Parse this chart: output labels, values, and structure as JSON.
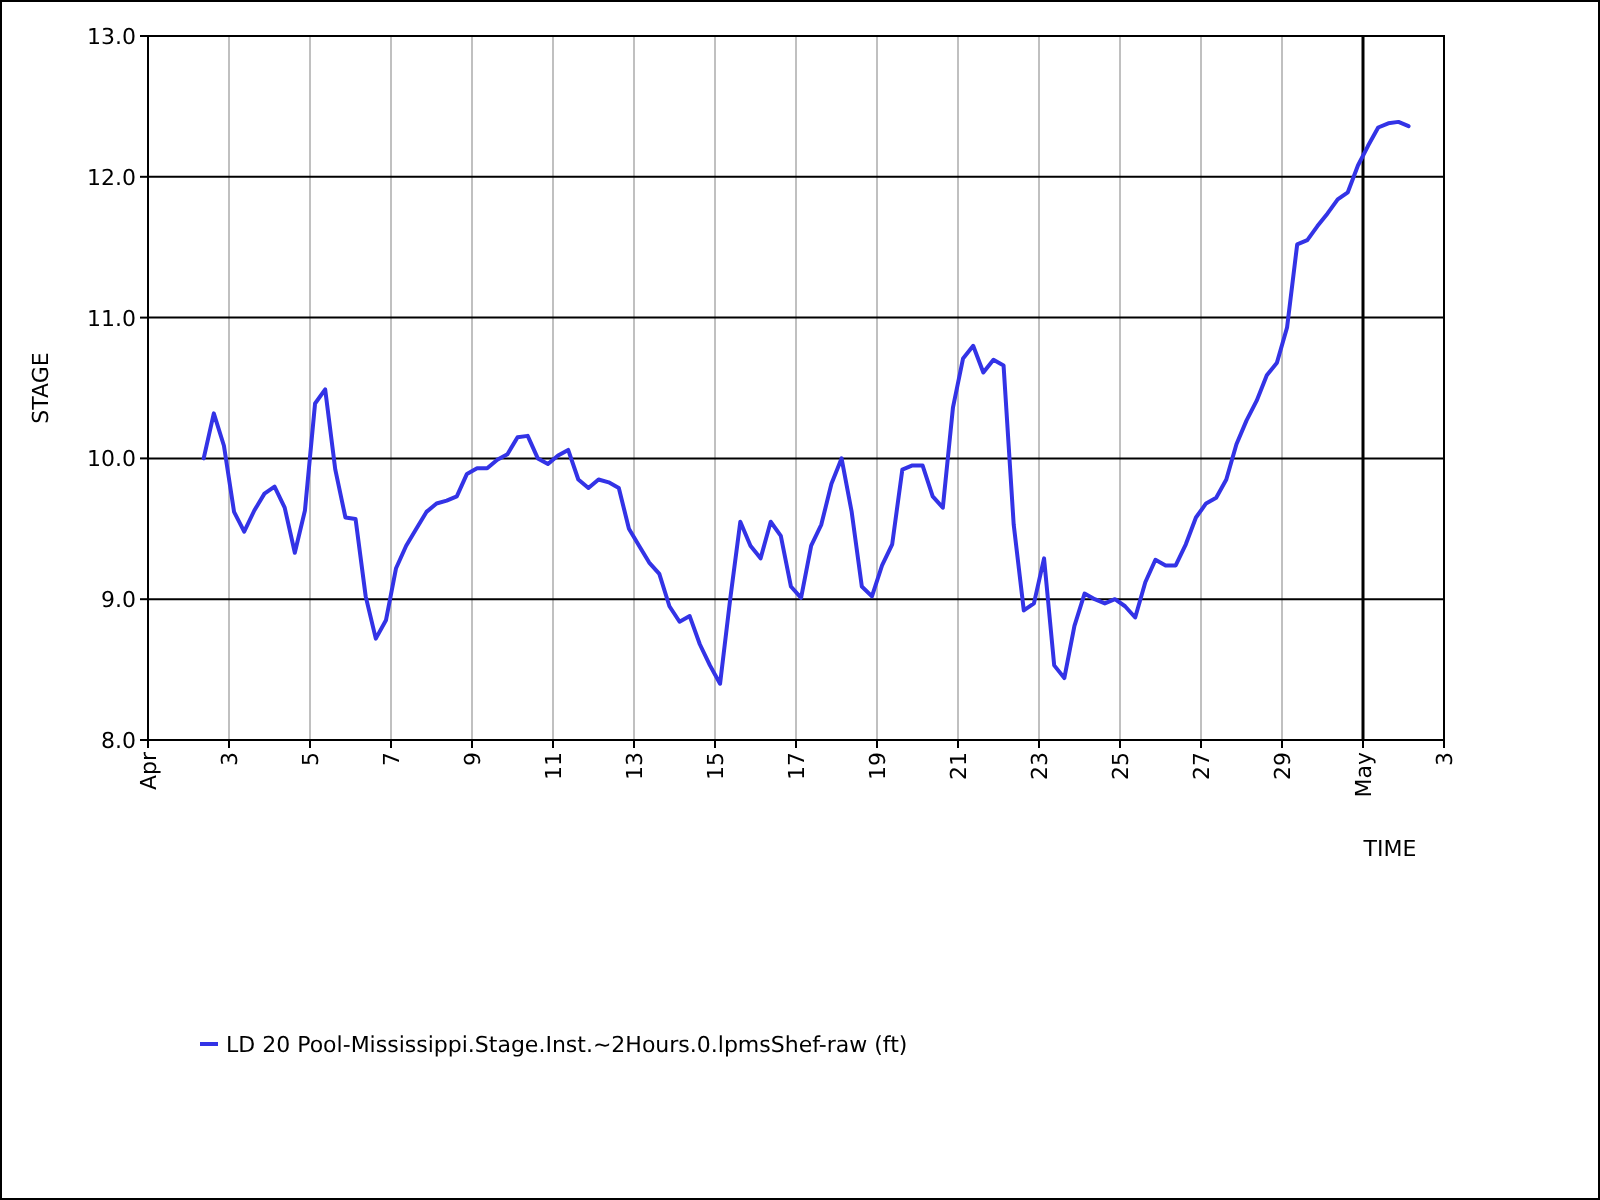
{
  "chart_data": {
    "type": "line",
    "xlabel": "TIME",
    "ylabel": "STAGE",
    "xlim": [
      "--04-01",
      "--05-03"
    ],
    "ylim": [
      8,
      13
    ],
    "xticks": [
      {
        "value": "--04-01",
        "label": "Apr"
      },
      {
        "value": "--04-03",
        "label": "3"
      },
      {
        "value": "--04-05",
        "label": "5"
      },
      {
        "value": "--04-07",
        "label": "7"
      },
      {
        "value": "--04-09",
        "label": "9"
      },
      {
        "value": "--04-11",
        "label": "11"
      },
      {
        "value": "--04-13",
        "label": "13"
      },
      {
        "value": "--04-15",
        "label": "15"
      },
      {
        "value": "--04-17",
        "label": "17"
      },
      {
        "value": "--04-19",
        "label": "19"
      },
      {
        "value": "--04-21",
        "label": "21"
      },
      {
        "value": "--04-23",
        "label": "23"
      },
      {
        "value": "--04-25",
        "label": "25"
      },
      {
        "value": "--04-27",
        "label": "27"
      },
      {
        "value": "--04-29",
        "label": "29"
      },
      {
        "value": "--05-01",
        "label": "May"
      },
      {
        "value": "--05-03",
        "label": "3"
      }
    ],
    "yticks": [
      {
        "value": 8,
        "label": "8.0"
      },
      {
        "value": 9,
        "label": "9.0"
      },
      {
        "value": 10,
        "label": "10.0"
      },
      {
        "value": 11,
        "label": "11.0"
      },
      {
        "value": 12,
        "label": "12.0"
      },
      {
        "value": 13,
        "label": "13.0"
      }
    ],
    "grid": true,
    "legend": "bottom left",
    "marker": "none",
    "line_style": "solid",
    "ref_lines": [
      {
        "axis": "x",
        "value": "--05-01",
        "label": null,
        "color": "#000000"
      }
    ],
    "series": [
      {
        "name": "LD 20 Pool-Mississippi.Stage.Inst.~2Hours.0.lpmsShef-raw (ft)",
        "color": "#3333e6",
        "x": [
          "--04-02T09:00",
          "--04-02T15:00",
          "--04-02T21:00",
          "--04-03T03:00",
          "--04-03T09:00",
          "--04-03T15:00",
          "--04-03T21:00",
          "--04-04T03:00",
          "--04-04T09:00",
          "--04-04T15:00",
          "--04-04T21:00",
          "--04-05T03:00",
          "--04-05T09:00",
          "--04-05T15:00",
          "--04-05T21:00",
          "--04-06T03:00",
          "--04-06T09:00",
          "--04-06T15:00",
          "--04-06T21:00",
          "--04-07T03:00",
          "--04-07T09:00",
          "--04-07T15:00",
          "--04-07T21:00",
          "--04-08T03:00",
          "--04-08T09:00",
          "--04-08T15:00",
          "--04-08T21:00",
          "--04-09T03:00",
          "--04-09T09:00",
          "--04-09T15:00",
          "--04-09T21:00",
          "--04-10T03:00",
          "--04-10T09:00",
          "--04-10T15:00",
          "--04-10T21:00",
          "--04-11T03:00",
          "--04-11T09:00",
          "--04-11T15:00",
          "--04-11T21:00",
          "--04-12T03:00",
          "--04-12T09:00",
          "--04-12T15:00",
          "--04-12T21:00",
          "--04-13T03:00",
          "--04-13T09:00",
          "--04-13T15:00",
          "--04-13T21:00",
          "--04-14T03:00",
          "--04-14T09:00",
          "--04-14T15:00",
          "--04-14T21:00",
          "--04-15T03:00",
          "--04-15T09:00",
          "--04-15T15:00",
          "--04-15T21:00",
          "--04-16T03:00",
          "--04-16T09:00",
          "--04-16T15:00",
          "--04-16T21:00",
          "--04-17T03:00",
          "--04-17T09:00",
          "--04-17T15:00",
          "--04-17T21:00",
          "--04-18T03:00",
          "--04-18T09:00",
          "--04-18T15:00",
          "--04-18T21:00",
          "--04-19T03:00",
          "--04-19T09:00",
          "--04-19T15:00",
          "--04-19T21:00",
          "--04-20T03:00",
          "--04-20T09:00",
          "--04-20T15:00",
          "--04-20T21:00",
          "--04-21T03:00",
          "--04-21T09:00",
          "--04-21T15:00",
          "--04-21T21:00",
          "--04-22T03:00",
          "--04-22T09:00",
          "--04-22T15:00",
          "--04-22T21:00",
          "--04-23T03:00",
          "--04-23T09:00",
          "--04-23T15:00",
          "--04-23T21:00",
          "--04-24T03:00",
          "--04-24T09:00",
          "--04-24T15:00",
          "--04-24T21:00",
          "--04-25T03:00",
          "--04-25T09:00",
          "--04-25T15:00",
          "--04-25T21:00",
          "--04-26T03:00",
          "--04-26T09:00",
          "--04-26T15:00",
          "--04-26T21:00",
          "--04-27T03:00",
          "--04-27T09:00",
          "--04-27T15:00",
          "--04-27T21:00",
          "--04-28T03:00",
          "--04-28T09:00",
          "--04-28T15:00",
          "--04-28T21:00",
          "--04-29T03:00",
          "--04-29T09:00",
          "--04-29T15:00",
          "--04-29T21:00",
          "--04-30T03:00",
          "--04-30T09:00",
          "--04-30T15:00",
          "--04-30T21:00",
          "--05-01T03:00",
          "--05-01T09:00",
          "--05-01T15:00",
          "--05-01T21:00",
          "--05-02T03:00"
        ],
        "values": [
          10.0,
          10.32,
          10.09,
          9.62,
          9.48,
          9.63,
          9.75,
          9.8,
          9.65,
          9.33,
          9.63,
          10.39,
          10.49,
          9.92,
          9.58,
          9.57,
          9.02,
          8.72,
          8.85,
          9.22,
          9.38,
          9.5,
          9.62,
          9.68,
          9.7,
          9.73,
          9.89,
          9.93,
          9.93,
          9.99,
          10.03,
          10.15,
          10.16,
          10.0,
          9.96,
          10.02,
          10.06,
          9.85,
          9.79,
          9.85,
          9.83,
          9.79,
          9.5,
          9.38,
          9.26,
          9.18,
          8.95,
          8.84,
          8.88,
          8.68,
          8.53,
          8.4,
          9.0,
          9.55,
          9.38,
          9.29,
          9.55,
          9.45,
          9.09,
          9.01,
          9.38,
          9.53,
          9.82,
          10.0,
          9.62,
          9.09,
          9.02,
          9.24,
          9.39,
          9.92,
          9.95,
          9.95,
          9.73,
          9.65,
          10.36,
          10.71,
          10.8,
          10.61,
          10.7,
          10.66,
          9.53,
          8.92,
          8.97,
          9.29,
          8.53,
          8.44,
          8.81,
          9.04,
          9.0,
          8.97,
          9.0,
          8.95,
          8.87,
          9.12,
          9.28,
          9.24,
          9.24,
          9.39,
          9.58,
          9.68,
          9.72,
          9.85,
          10.1,
          10.27,
          10.41,
          10.59,
          10.68,
          10.93,
          11.52,
          11.55,
          11.65,
          11.74,
          11.84,
          11.89,
          12.08,
          12.22,
          12.35,
          12.38,
          12.39,
          12.36
        ]
      }
    ]
  }
}
